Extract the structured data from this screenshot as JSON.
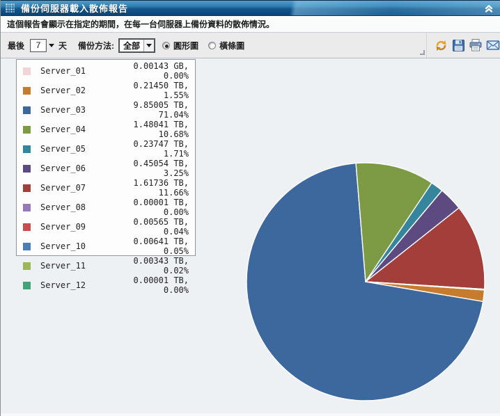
{
  "window": {
    "title": "備份伺服器載入散佈報告",
    "description": "這個報告會顯示在指定的期間，在每一台伺服器上備份資料的散佈情況。"
  },
  "toolbar": {
    "last_label": "最後",
    "days_value": "7",
    "days_unit": "天",
    "backup_method_label": "備份方法:",
    "backup_method_value": "全部",
    "chart_type_options": [
      {
        "label": "圓形圖",
        "selected": true
      },
      {
        "label": "橫條圖",
        "selected": false
      }
    ],
    "icons": [
      "refresh-icon",
      "save-icon",
      "print-icon",
      "email-icon"
    ]
  },
  "chart_data": {
    "type": "pie",
    "title": "",
    "legend_position": "top-left",
    "start_angle_deg": 94,
    "categories": [
      "Server_01",
      "Server_02",
      "Server_03",
      "Server_04",
      "Server_05",
      "Server_06",
      "Server_07",
      "Server_08",
      "Server_09",
      "Server_10",
      "Server_11",
      "Server_12"
    ],
    "values": [
      0.0,
      1.55,
      71.04,
      10.68,
      1.71,
      3.25,
      11.66,
      0.0,
      0.04,
      0.05,
      0.02,
      0.0
    ],
    "slices": [
      {
        "name": "Server_01",
        "size_label": "0.00143 GB, 0.00%",
        "percent": 0.0,
        "color": "#f5d4d8"
      },
      {
        "name": "Server_02",
        "size_label": "0.21450 TB, 1.55%",
        "percent": 1.55,
        "color": "#c77c2d"
      },
      {
        "name": "Server_03",
        "size_label": "9.85005 TB, 71.04%",
        "percent": 71.04,
        "color": "#3c689d"
      },
      {
        "name": "Server_04",
        "size_label": "1.48041 TB, 10.68%",
        "percent": 10.68,
        "color": "#7d9b45"
      },
      {
        "name": "Server_05",
        "size_label": "0.23747 TB, 1.71%",
        "percent": 1.71,
        "color": "#35859c"
      },
      {
        "name": "Server_06",
        "size_label": "0.45054 TB, 3.25%",
        "percent": 3.25,
        "color": "#5d4a80"
      },
      {
        "name": "Server_07",
        "size_label": "1.61736 TB, 11.66%",
        "percent": 11.66,
        "color": "#a33e3a"
      },
      {
        "name": "Server_08",
        "size_label": "0.00001 TB, 0.00%",
        "percent": 0.0,
        "color": "#9779b9"
      },
      {
        "name": "Server_09",
        "size_label": "0.00565 TB, 0.04%",
        "percent": 0.04,
        "color": "#c4504d"
      },
      {
        "name": "Server_10",
        "size_label": "0.00641 TB, 0.05%",
        "percent": 0.05,
        "color": "#4c7db8"
      },
      {
        "name": "Server_11",
        "size_label": "0.00343 TB, 0.02%",
        "percent": 0.02,
        "color": "#9cb854"
      },
      {
        "name": "Server_12",
        "size_label": "0.00001 TB, 0.00%",
        "percent": 0.0,
        "color": "#45a477"
      }
    ]
  }
}
